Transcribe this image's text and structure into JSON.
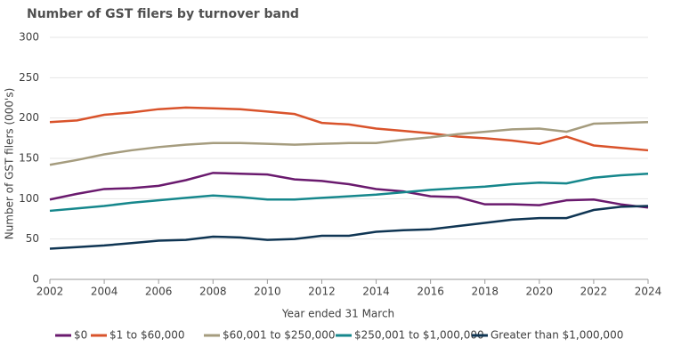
{
  "chart_data": {
    "type": "line",
    "title": "Number of GST filers by turnover band",
    "xlabel": "Year ended 31 March",
    "ylabel": "Number of GST filers (000's)",
    "x": [
      2002,
      2003,
      2004,
      2005,
      2006,
      2007,
      2008,
      2009,
      2010,
      2011,
      2012,
      2013,
      2014,
      2015,
      2016,
      2017,
      2018,
      2019,
      2020,
      2021,
      2022,
      2023,
      2024
    ],
    "xlim": [
      2002,
      2024
    ],
    "xticks": [
      2002,
      2004,
      2006,
      2008,
      2010,
      2012,
      2014,
      2016,
      2018,
      2020,
      2022,
      2024
    ],
    "ylim": [
      0,
      300
    ],
    "yticks": [
      0,
      50,
      100,
      150,
      200,
      250,
      300
    ],
    "grid": true,
    "legend": "bottom",
    "series": [
      {
        "name": "$0",
        "color": "#6a1a6e",
        "values": [
          99,
          106,
          112,
          113,
          116,
          123,
          132,
          131,
          130,
          124,
          122,
          118,
          112,
          109,
          103,
          102,
          93,
          93,
          92,
          98,
          99,
          93,
          89
        ]
      },
      {
        "name": "$1 to $60,000",
        "color": "#d9532b",
        "values": [
          195,
          197,
          204,
          207,
          211,
          213,
          212,
          211,
          208,
          205,
          194,
          192,
          187,
          184,
          181,
          177,
          175,
          172,
          168,
          177,
          166,
          163,
          160
        ]
      },
      {
        "name": "$60,001 to $250,000",
        "color": "#a59c7e",
        "values": [
          142,
          148,
          155,
          160,
          164,
          167,
          169,
          169,
          168,
          167,
          168,
          169,
          169,
          173,
          176,
          180,
          183,
          186,
          187,
          183,
          193,
          194,
          195
        ]
      },
      {
        "name": "$250,001 to $1,000,000",
        "color": "#16878c",
        "values": [
          85,
          88,
          91,
          95,
          98,
          101,
          104,
          102,
          99,
          99,
          101,
          103,
          105,
          108,
          111,
          113,
          115,
          118,
          120,
          119,
          126,
          129,
          131
        ]
      },
      {
        "name": "Greater than $1,000,000",
        "color": "#0f3553",
        "values": [
          38,
          40,
          42,
          45,
          48,
          49,
          53,
          52,
          49,
          50,
          54,
          54,
          59,
          61,
          62,
          66,
          70,
          74,
          76,
          76,
          86,
          90,
          91
        ]
      }
    ]
  }
}
